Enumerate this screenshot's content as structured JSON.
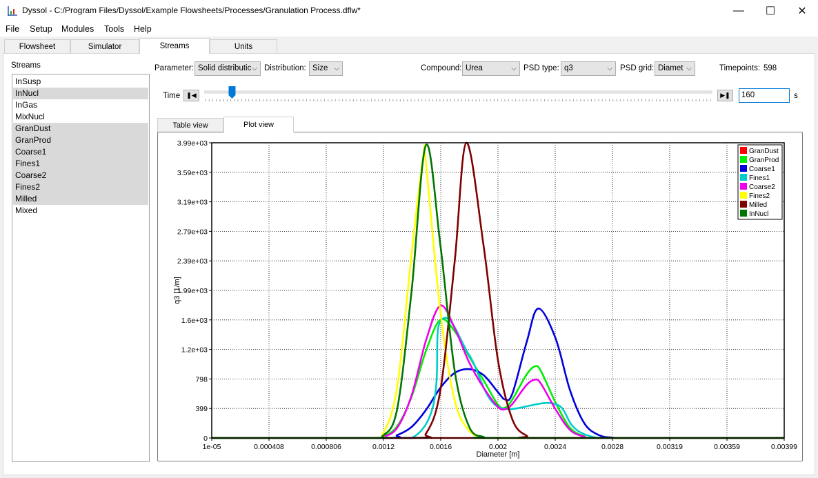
{
  "window": {
    "title": "Dyssol - C:/Program Files/Dyssol/Example Flowsheets/Processes/Granulation Process.dflw*"
  },
  "menu": [
    "File",
    "Setup",
    "Modules",
    "Tools",
    "Help"
  ],
  "tabs": [
    "Flowsheet",
    "Simulator",
    "Streams",
    "Units"
  ],
  "streams": {
    "title": "Streams",
    "items": [
      {
        "label": "InSusp",
        "selected": false
      },
      {
        "label": "InNucl",
        "selected": true
      },
      {
        "label": "InGas",
        "selected": false
      },
      {
        "label": "MixNucl",
        "selected": false
      },
      {
        "label": "GranDust",
        "selected": true
      },
      {
        "label": "GranProd",
        "selected": true
      },
      {
        "label": "Coarse1",
        "selected": true
      },
      {
        "label": "Fines1",
        "selected": true
      },
      {
        "label": "Coarse2",
        "selected": true
      },
      {
        "label": "Fines2",
        "selected": true
      },
      {
        "label": "Milled",
        "selected": true
      },
      {
        "label": "Mixed",
        "selected": false
      }
    ]
  },
  "controls": {
    "parameter_label": "Parameter:",
    "parameter_value": "Solid distributic",
    "distribution_label": "Distribution:",
    "distribution_value": "Size",
    "compound_label": "Compound:",
    "compound_value": "Urea",
    "psd_type_label": "PSD type:",
    "psd_type_value": "q3",
    "psd_grid_label": "PSD grid:",
    "psd_grid_value": "Diamet",
    "timepoints_label": "Timepoints:",
    "timepoints_value": "598",
    "time_label": "Time",
    "time_value": "160",
    "time_unit": "s",
    "slider_fraction": 0.055
  },
  "subtabs": [
    "Table view",
    "Plot view"
  ],
  "chart_data": {
    "type": "line",
    "xlabel": "Diameter [m]",
    "ylabel": "q3 [1/m]",
    "xlim": [
      1e-05,
      0.00399
    ],
    "ylim": [
      0,
      3990
    ],
    "x_tick_labels": [
      "1e-05",
      "0.000408",
      "0.000806",
      "0.0012",
      "0.0016",
      "0.002",
      "0.0024",
      "0.0028",
      "0.00319",
      "0.00359",
      "0.00399"
    ],
    "y_tick_labels": [
      "0",
      "399",
      "798",
      "1.2e+03",
      "1.6e+03",
      "1.99e+03",
      "2.39e+03",
      "2.79e+03",
      "3.19e+03",
      "3.59e+03",
      "3.99e+03"
    ],
    "grid": true,
    "legend_position": "top-right",
    "series": [
      {
        "name": "GranDust",
        "color": "#ff0000",
        "points": [
          [
            1e-05,
            0
          ],
          [
            0.00399,
            0
          ]
        ]
      },
      {
        "name": "GranProd",
        "color": "#00ee00",
        "points": [
          [
            1e-05,
            0
          ],
          [
            0.0011,
            0
          ],
          [
            0.0012,
            20
          ],
          [
            0.0013,
            160
          ],
          [
            0.0014,
            560
          ],
          [
            0.0015,
            1180
          ],
          [
            0.0016,
            1600
          ],
          [
            0.0017,
            1440
          ],
          [
            0.0018,
            1100
          ],
          [
            0.0019,
            780
          ],
          [
            0.002,
            450
          ],
          [
            0.00205,
            410
          ],
          [
            0.0021,
            520
          ],
          [
            0.0022,
            860
          ],
          [
            0.00226,
            970
          ],
          [
            0.0023,
            900
          ],
          [
            0.0024,
            480
          ],
          [
            0.0025,
            140
          ],
          [
            0.0026,
            25
          ],
          [
            0.0027,
            0
          ],
          [
            0.00399,
            0
          ]
        ]
      },
      {
        "name": "Coarse1",
        "color": "#0000dd",
        "points": [
          [
            1e-05,
            0
          ],
          [
            0.0012,
            0
          ],
          [
            0.0013,
            40
          ],
          [
            0.0014,
            150
          ],
          [
            0.0015,
            380
          ],
          [
            0.0016,
            680
          ],
          [
            0.0017,
            880
          ],
          [
            0.0018,
            930
          ],
          [
            0.0019,
            850
          ],
          [
            0.002,
            620
          ],
          [
            0.00205,
            520
          ],
          [
            0.0021,
            600
          ],
          [
            0.0022,
            1300
          ],
          [
            0.00228,
            1750
          ],
          [
            0.0024,
            1350
          ],
          [
            0.0025,
            650
          ],
          [
            0.0026,
            200
          ],
          [
            0.0027,
            40
          ],
          [
            0.0028,
            5
          ],
          [
            0.0029,
            0
          ],
          [
            0.00399,
            0
          ]
        ]
      },
      {
        "name": "Fines1",
        "color": "#00cccc",
        "points": [
          [
            1e-05,
            0
          ],
          [
            0.0014,
            0
          ],
          [
            0.0016,
            1580
          ],
          [
            0.0018,
            1120
          ],
          [
            0.002,
            420
          ],
          [
            0.0024,
            460
          ],
          [
            0.0027,
            0
          ],
          [
            0.00399,
            0
          ]
        ]
      },
      {
        "name": "Coarse2",
        "color": "#ee00ee",
        "points": [
          [
            1e-05,
            0
          ],
          [
            0.0011,
            0
          ],
          [
            0.0012,
            15
          ],
          [
            0.0013,
            140
          ],
          [
            0.0014,
            580
          ],
          [
            0.0015,
            1320
          ],
          [
            0.0016,
            1790
          ],
          [
            0.0017,
            1480
          ],
          [
            0.0018,
            1020
          ],
          [
            0.0019,
            680
          ],
          [
            0.002,
            420
          ],
          [
            0.00205,
            390
          ],
          [
            0.0021,
            460
          ],
          [
            0.0022,
            720
          ],
          [
            0.00226,
            790
          ],
          [
            0.0023,
            730
          ],
          [
            0.0024,
            390
          ],
          [
            0.0025,
            110
          ],
          [
            0.0026,
            20
          ],
          [
            0.0027,
            0
          ],
          [
            0.00399,
            0
          ]
        ]
      },
      {
        "name": "Fines2",
        "color": "#ffff00",
        "points": [
          [
            1e-05,
            0
          ],
          [
            0.0011,
            0
          ],
          [
            0.0012,
            60
          ],
          [
            0.0013,
            700
          ],
          [
            0.0014,
            2500
          ],
          [
            0.00148,
            3800
          ],
          [
            0.0015,
            3700
          ],
          [
            0.0016,
            1700
          ],
          [
            0.0017,
            500
          ],
          [
            0.0018,
            100
          ],
          [
            0.0019,
            10
          ],
          [
            0.002,
            0
          ],
          [
            0.00399,
            0
          ]
        ]
      },
      {
        "name": "Milled",
        "color": "#800000",
        "points": [
          [
            1e-05,
            0
          ],
          [
            0.0014,
            0
          ],
          [
            0.0015,
            60
          ],
          [
            0.0016,
            650
          ],
          [
            0.0017,
            2400
          ],
          [
            0.00178,
            3990
          ],
          [
            0.0019,
            2600
          ],
          [
            0.002,
            1050
          ],
          [
            0.0021,
            250
          ],
          [
            0.0022,
            30
          ],
          [
            0.0023,
            0
          ],
          [
            0.00399,
            0
          ]
        ]
      },
      {
        "name": "InNucl",
        "color": "#007700",
        "points": [
          [
            1e-05,
            0
          ],
          [
            0.0011,
            0
          ],
          [
            0.0012,
            30
          ],
          [
            0.0013,
            400
          ],
          [
            0.0014,
            2000
          ],
          [
            0.0015,
            3960
          ],
          [
            0.0016,
            2600
          ],
          [
            0.0017,
            900
          ],
          [
            0.0018,
            150
          ],
          [
            0.0019,
            15
          ],
          [
            0.002,
            0
          ],
          [
            0.00399,
            0
          ]
        ]
      }
    ]
  }
}
